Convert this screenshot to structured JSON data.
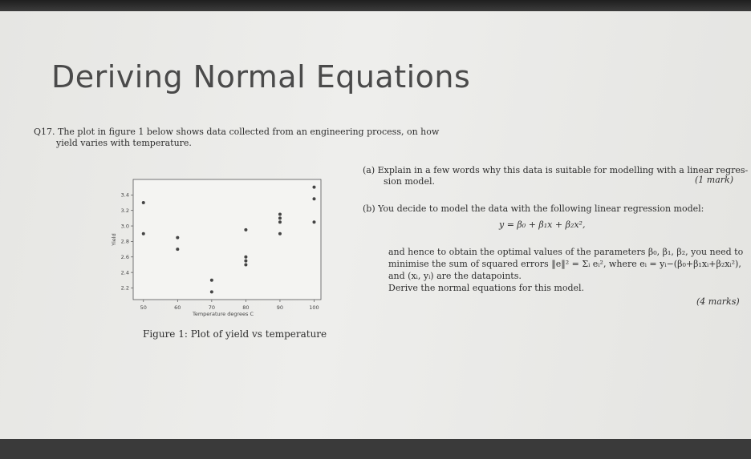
{
  "slide": {
    "title": "Deriving Normal Equations",
    "question": {
      "line1": "Q17.  The plot in figure 1 below shows data collected from an engineering process, on how",
      "line2": "yield varies with temperature."
    },
    "figure_caption": "Figure 1: Plot of yield vs temperature",
    "part_a": {
      "line1": "(a)  Explain in a few words why this data is suitable for modelling with a linear regres-",
      "line2": "sion model.",
      "marks": "(1 mark)"
    },
    "part_b": {
      "line1": "(b)  You decide to model the data with the following linear regression model:",
      "equation": "y = β₀ + β₁x + β₂x²,",
      "line2": "and hence to obtain the optimal values of the parameters β₀, β₁, β₂, you need to",
      "line3": "minimise the sum of squared errors ‖e‖² = Σᵢ eᵢ², where eᵢ = yᵢ−(β₀+β₁xᵢ+β₂xᵢ²),",
      "line4": "and (xᵢ, yᵢ) are the datapoints.",
      "line5": "Derive the normal equations for this model.",
      "marks": "(4 marks)"
    }
  },
  "chart_data": {
    "type": "scatter",
    "xlabel": "Temperature degrees C",
    "ylabel": "Yield",
    "xlim": [
      47,
      102
    ],
    "ylim": [
      2.05,
      3.6
    ],
    "x_ticks": [
      "50",
      "60",
      "70",
      "80",
      "90",
      "100"
    ],
    "y_ticks": [
      "2.2",
      "2.4",
      "2.6",
      "2.8",
      "3.0",
      "3.2",
      "3.4"
    ],
    "x": [
      50,
      50,
      60,
      60,
      70,
      70,
      80,
      80,
      80,
      80,
      90,
      90,
      90,
      90,
      100,
      100,
      100
    ],
    "y": [
      3.3,
      2.9,
      2.85,
      2.7,
      2.3,
      2.15,
      2.95,
      2.6,
      2.55,
      2.5,
      3.15,
      3.1,
      3.05,
      2.9,
      3.5,
      3.35,
      3.05
    ],
    "marker_color": "#444444",
    "grid": false
  }
}
